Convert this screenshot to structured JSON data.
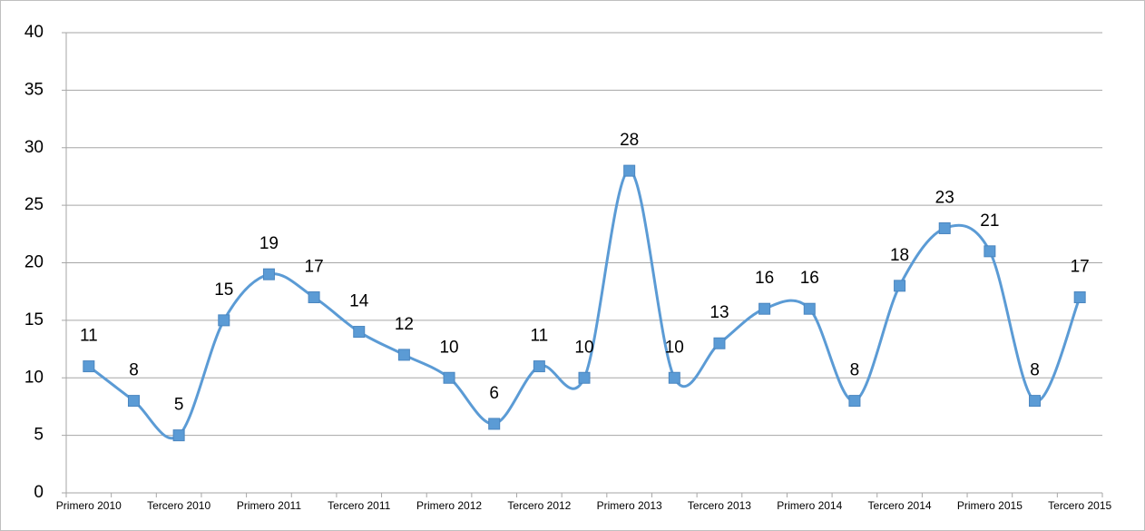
{
  "chart_data": {
    "type": "line",
    "categories": [
      "Primero 2010",
      null,
      "Tercero 2010",
      null,
      "Primero 2011",
      null,
      "Tercero 2011",
      null,
      "Primero 2012",
      null,
      "Tercero 2012",
      null,
      "Primero 2013",
      null,
      "Tercero 2013",
      null,
      "Primero 2014",
      null,
      "Tercero 2014",
      null,
      "Primero 2015",
      null,
      "Tercero 2015"
    ],
    "values": [
      11,
      8,
      5,
      15,
      19,
      17,
      14,
      12,
      10,
      6,
      11,
      10,
      28,
      10,
      13,
      16,
      16,
      8,
      18,
      23,
      21,
      8,
      17
    ],
    "color": "#5b9bd5",
    "ylim": [
      0,
      40
    ],
    "yticks": [
      0,
      5,
      10,
      15,
      20,
      25,
      30,
      35,
      40
    ],
    "grid": true,
    "smooth": true
  }
}
